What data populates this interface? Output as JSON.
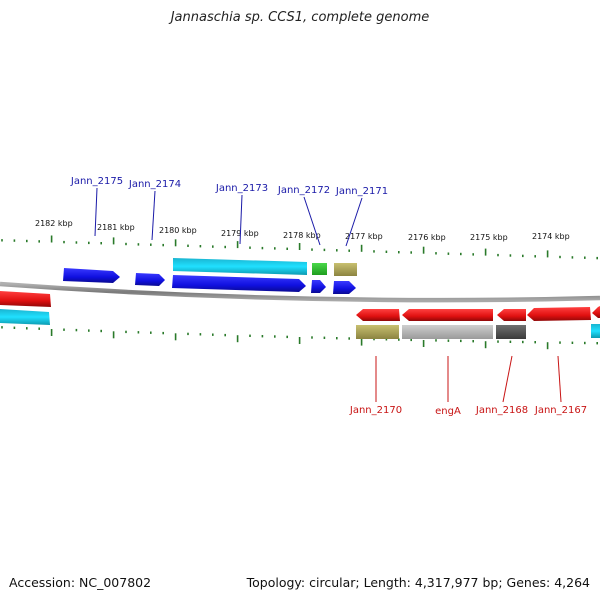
{
  "title": "Jannaschia sp. CCS1, complete genome",
  "footer": {
    "accession": "Accession: NC_007802",
    "summary": "Topology: circular; Length: 4,317,977 bp; Genes: 4,264"
  },
  "scale_labels": [
    "2182 kbp",
    "2181 kbp",
    "2180 kbp",
    "2179 kbp",
    "2178 kbp",
    "2177 kbp",
    "2176 kbp",
    "2175 kbp",
    "2174 kbp"
  ],
  "top_gene_labels": [
    "Jann_2175",
    "Jann_2174",
    "Jann_2173",
    "Jann_2172",
    "Jann_2171"
  ],
  "bottom_gene_labels": [
    "Jann_2170",
    "engA",
    "Jann_2168",
    "Jann_2167"
  ],
  "colors": {
    "cds": "#1a1ae6",
    "cds_reverse": "#e61414",
    "backbone": "#888888",
    "tick": "#2a7a2a",
    "label_top": "#1a1aa8",
    "label_bottom": "#c81414"
  }
}
